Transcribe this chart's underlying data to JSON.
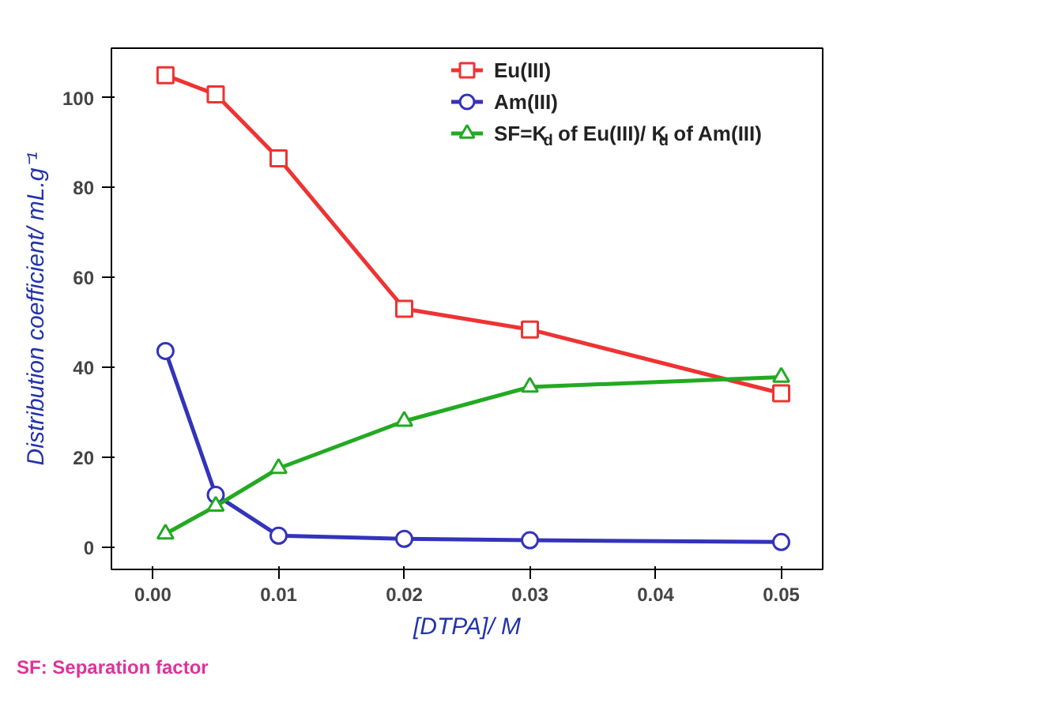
{
  "chart_data": {
    "type": "line",
    "xlabel": "[DTPA]/ M",
    "ylabel": "Distribution coefficient/ mL.g⁻¹",
    "x": [
      0.001,
      0.005,
      0.01,
      0.02,
      0.03,
      0.05
    ],
    "series": [
      {
        "name": "Eu(III)",
        "color": "#ee3333",
        "marker": "square",
        "values": [
          105,
          100.7,
          86.5,
          53,
          48.4,
          34.2
        ]
      },
      {
        "name": "Am(III)",
        "color": "#3333bb",
        "marker": "circle",
        "values": [
          43.6,
          11.6,
          2.5,
          1.8,
          1.5,
          1.1
        ]
      },
      {
        "name": "SF=K$_{d}$ of Eu(III)/ K$_{d}$ of Am(III)",
        "color": "#22aa22",
        "marker": "triangle",
        "values": [
          2.9,
          9.1,
          17.5,
          28,
          35.6,
          37.8
        ]
      }
    ],
    "xlim": [
      -0.0033,
      0.0533
    ],
    "ylim": [
      -5,
      111
    ],
    "xticks": [
      {
        "value": 0,
        "label": "0.00"
      },
      {
        "value": 0.01,
        "label": "0.01"
      },
      {
        "value": 0.02,
        "label": "0.02"
      },
      {
        "value": 0.03,
        "label": "0.03"
      },
      {
        "value": 0.04,
        "label": "0.04"
      },
      {
        "value": 0.05,
        "label": "0.05"
      }
    ],
    "yticks": [
      0,
      20,
      40,
      60,
      80,
      100
    ],
    "grid": false,
    "legend": "top right",
    "line_style": "solid",
    "annotations": [
      "SF: Separation factor"
    ]
  }
}
